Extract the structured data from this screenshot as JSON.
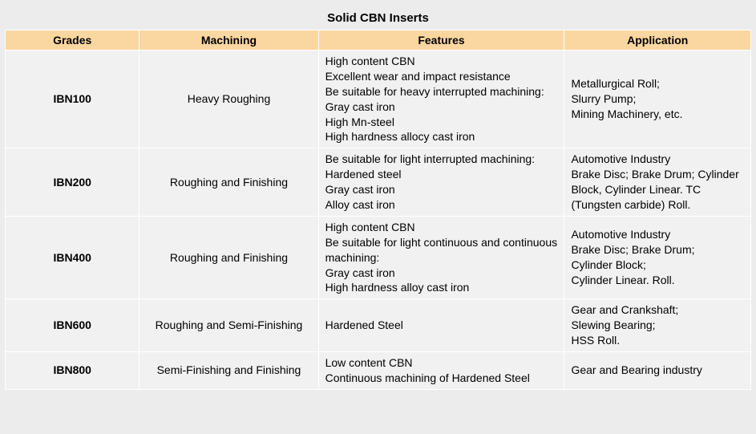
{
  "title": "Solid CBN Inserts",
  "columns": [
    "Grades",
    "Machining",
    "Features",
    "Application"
  ],
  "colors": {
    "background": "#ececec",
    "header_bg": "#fad7a0",
    "cell_bg": "#f1f1f1",
    "border": "#ffffff",
    "text": "#000000"
  },
  "typography": {
    "title_fontsize": 15,
    "header_fontsize": 14,
    "cell_fontsize": 14,
    "title_weight": "bold",
    "header_weight": "bold",
    "grade_weight": "bold"
  },
  "column_widths_pct": [
    18,
    24,
    33,
    25
  ],
  "rows": [
    {
      "grade": "IBN100",
      "machining": "Heavy Roughing",
      "features": "High content CBN\nExcellent wear and impact resistance\nBe suitable for heavy interrupted machining:\nGray cast iron\nHigh Mn-steel\nHigh hardness allocy cast iron",
      "application": "Metallurgical Roll;\nSlurry Pump;\nMining Machinery, etc."
    },
    {
      "grade": "IBN200",
      "machining": "Roughing and Finishing",
      "features": "Be suitable for light interrupted machining:\nHardened steel\nGray cast iron\nAlloy cast iron",
      "application": "Automotive Industry\nBrake Disc; Brake Drum; Cylinder Block, Cylinder Linear. TC (Tungsten carbide) Roll."
    },
    {
      "grade": "IBN400",
      "machining": "Roughing and Finishing",
      "features": "High content CBN\nBe suitable for light continuous and continuous machining:\nGray cast iron\nHigh hardness alloy cast iron",
      "application": "Automotive Industry\nBrake Disc; Brake Drum;\nCylinder Block;\nCylinder Linear. Roll."
    },
    {
      "grade": "IBN600",
      "machining": "Roughing and Semi-Finishing",
      "features": "Hardened Steel",
      "application": "Gear and Crankshaft;\nSlewing Bearing;\nHSS Roll."
    },
    {
      "grade": "IBN800",
      "machining": "Semi-Finishing and Finishing",
      "features": "Low content CBN\nContinuous machining of Hardened Steel",
      "application": "Gear and Bearing industry"
    }
  ]
}
